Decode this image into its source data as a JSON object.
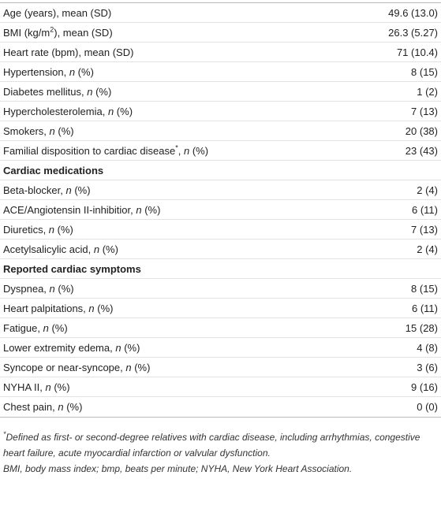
{
  "table": {
    "rows": [
      {
        "label": [
          {
            "text": "Age (years), mean (SD)"
          }
        ],
        "value": "49.6 (13.0)"
      },
      {
        "label": [
          {
            "text": "BMI (kg/m"
          },
          {
            "text": "2",
            "style": "sup"
          },
          {
            "text": "), mean (SD)"
          }
        ],
        "value": "26.3 (5.27)"
      },
      {
        "label": [
          {
            "text": "Heart rate (bpm), mean (SD)"
          }
        ],
        "value": "71 (10.4)"
      },
      {
        "label": [
          {
            "text": "Hypertension, "
          },
          {
            "text": "n",
            "style": "italic"
          },
          {
            "text": " (%)"
          }
        ],
        "value": "8 (15)"
      },
      {
        "label": [
          {
            "text": "Diabetes mellitus, "
          },
          {
            "text": "n",
            "style": "italic"
          },
          {
            "text": " (%)"
          }
        ],
        "value": "1 (2)"
      },
      {
        "label": [
          {
            "text": "Hypercholesterolemia, "
          },
          {
            "text": "n",
            "style": "italic"
          },
          {
            "text": " (%)"
          }
        ],
        "value": "7 (13)"
      },
      {
        "label": [
          {
            "text": "Smokers, "
          },
          {
            "text": "n",
            "style": "italic"
          },
          {
            "text": " (%)"
          }
        ],
        "value": "20 (38)"
      },
      {
        "label": [
          {
            "text": "Familial disposition to cardiac disease"
          },
          {
            "text": "*",
            "style": "sup"
          },
          {
            "text": ", "
          },
          {
            "text": "n",
            "style": "italic"
          },
          {
            "text": " (%)"
          }
        ],
        "value": "23 (43)"
      },
      {
        "section": "Cardiac medications"
      },
      {
        "label": [
          {
            "text": "Beta-blocker, "
          },
          {
            "text": "n",
            "style": "italic"
          },
          {
            "text": " (%)"
          }
        ],
        "value": "2 (4)"
      },
      {
        "label": [
          {
            "text": "ACE/Angiotensin II-inhibitior, "
          },
          {
            "text": "n",
            "style": "italic"
          },
          {
            "text": " (%)"
          }
        ],
        "value": "6 (11)"
      },
      {
        "label": [
          {
            "text": "Diuretics, "
          },
          {
            "text": "n",
            "style": "italic"
          },
          {
            "text": " (%)"
          }
        ],
        "value": "7 (13)"
      },
      {
        "label": [
          {
            "text": "Acetylsalicylic acid, "
          },
          {
            "text": "n",
            "style": "italic"
          },
          {
            "text": " (%)"
          }
        ],
        "value": "2 (4)"
      },
      {
        "section": "Reported cardiac symptoms"
      },
      {
        "label": [
          {
            "text": "Dyspnea, "
          },
          {
            "text": "n",
            "style": "italic"
          },
          {
            "text": " (%)"
          }
        ],
        "value": "8 (15)"
      },
      {
        "label": [
          {
            "text": "Heart palpitations, "
          },
          {
            "text": "n",
            "style": "italic"
          },
          {
            "text": " (%)"
          }
        ],
        "value": "6 (11)"
      },
      {
        "label": [
          {
            "text": "Fatigue, "
          },
          {
            "text": "n",
            "style": "italic"
          },
          {
            "text": " (%)"
          }
        ],
        "value": "15 (28)"
      },
      {
        "label": [
          {
            "text": "Lower extremity edema, "
          },
          {
            "text": "n",
            "style": "italic"
          },
          {
            "text": " (%)"
          }
        ],
        "value": "4 (8)"
      },
      {
        "label": [
          {
            "text": "Syncope or near-syncope, "
          },
          {
            "text": "n",
            "style": "italic"
          },
          {
            "text": " (%)"
          }
        ],
        "value": "3 (6)"
      },
      {
        "label": [
          {
            "text": "NYHA II, "
          },
          {
            "text": "n",
            "style": "italic"
          },
          {
            "text": " (%)"
          }
        ],
        "value": "9 (16)"
      },
      {
        "label": [
          {
            "text": "Chest pain, "
          },
          {
            "text": "n",
            "style": "italic"
          },
          {
            "text": " (%)"
          }
        ],
        "value": "0 (0)"
      }
    ],
    "footnotes": [
      [
        {
          "text": "*",
          "style": "sup"
        },
        {
          "text": "Defined as first- or second-degree relatives with cardiac disease, including arrhythmias, congestive heart failure, acute myocardial infarction or valvular dysfunction."
        }
      ],
      [
        {
          "text": "BMI, body mass index; bmp, beats per minute; NYHA, New York Heart Association."
        }
      ]
    ]
  }
}
